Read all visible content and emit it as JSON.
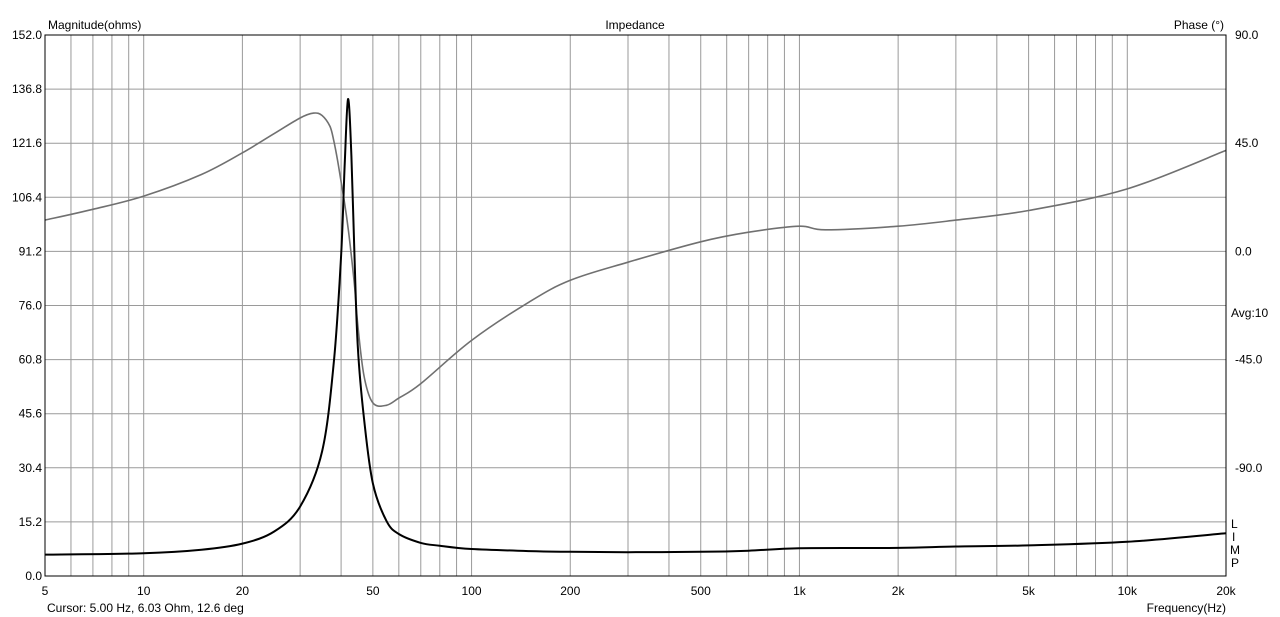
{
  "chart_data": {
    "type": "line",
    "title": "Impedance",
    "y_left_label": "Magnitude(ohms)",
    "y_right_label": "Phase (°)",
    "xlabel": "Frequency(Hz)",
    "x_scale": "log",
    "xlim": [
      5,
      20000
    ],
    "ylim_left": [
      0,
      152
    ],
    "ylim_right": [
      -135,
      90
    ],
    "x_ticks": [
      5,
      10,
      20,
      50,
      100,
      200,
      500,
      1000,
      2000,
      5000,
      10000,
      20000
    ],
    "x_tick_labels": [
      "5",
      "10",
      "20",
      "50",
      "100",
      "200",
      "500",
      "1k",
      "2k",
      "5k",
      "10k",
      "20k"
    ],
    "y_left_ticks": [
      "152.0",
      "136.8",
      "121.6",
      "106.4",
      "91.2",
      "76.0",
      "60.8",
      "45.6",
      "30.4",
      "15.2",
      "0.0"
    ],
    "y_right_ticks": [
      "90.0",
      "45.0",
      "0.0",
      "-45.0",
      "-90.0"
    ],
    "avg_label": "Avg:10",
    "side_letters": [
      "L",
      "I",
      "M",
      "P"
    ],
    "cursor_text": "Cursor: 5.00 Hz, 6.03 Ohm, 12.6 deg",
    "grid": true,
    "series": [
      {
        "color": "#000000",
        "axis": "left",
        "x": [
          5,
          10,
          15,
          20,
          25,
          30,
          35,
          38,
          40,
          41,
          42,
          43,
          44,
          45,
          47,
          50,
          55,
          60,
          70,
          80,
          100,
          150,
          200,
          300,
          500,
          700,
          1000,
          2000,
          3000,
          5000,
          10000,
          20000
        ],
        "values": [
          6.0,
          6.4,
          7.4,
          9.1,
          12.5,
          19.5,
          35.0,
          60.0,
          90.0,
          115.0,
          134.0,
          118.0,
          88.0,
          64.0,
          44.0,
          26.0,
          15.5,
          11.8,
          9.3,
          8.5,
          7.6,
          7.0,
          6.8,
          6.7,
          6.8,
          7.1,
          7.8,
          7.9,
          8.3,
          8.6,
          9.6,
          12.0
        ]
      },
      {
        "color": "#707070",
        "axis": "right",
        "x": [
          5,
          7,
          10,
          15,
          20,
          25,
          30,
          33,
          35,
          37,
          38,
          39,
          40,
          41,
          42,
          43,
          44,
          45,
          47,
          50,
          55,
          60,
          70,
          100,
          150,
          200,
          300,
          500,
          700,
          1000,
          1200,
          2000,
          3000,
          5000,
          10000,
          20000
        ],
        "values": [
          13.0,
          17.5,
          23.0,
          32.0,
          41.0,
          49.0,
          55.5,
          57.5,
          56.5,
          52.0,
          46.0,
          38.0,
          29.0,
          20.0,
          10.0,
          -2.0,
          -15.0,
          -31.0,
          -52.0,
          -63.0,
          -64.0,
          -61.0,
          -55.0,
          -37.0,
          -21.0,
          -12.0,
          -4.5,
          4.0,
          8.0,
          10.5,
          9.0,
          10.5,
          13.0,
          17.0,
          26.0,
          42.0
        ]
      }
    ]
  }
}
